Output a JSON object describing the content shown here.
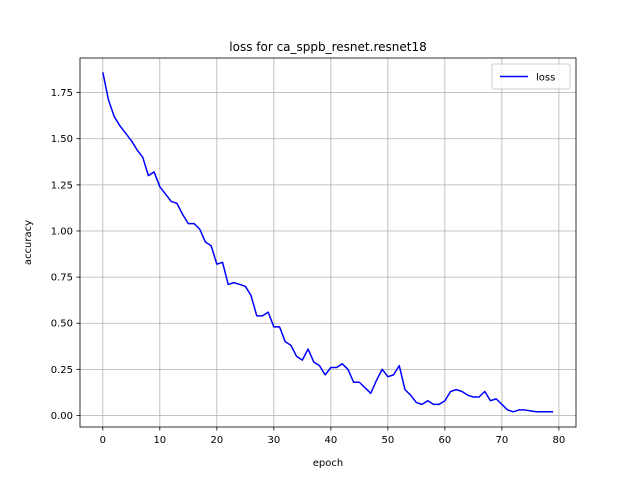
{
  "chart_data": {
    "type": "line",
    "title": "loss for ca_sppb_resnet.resnet18",
    "xlabel": "epoch",
    "ylabel": "accuracy",
    "xlim": [
      -4,
      83
    ],
    "ylim": [
      -0.0625,
      1.9375
    ],
    "xticks": [
      0,
      10,
      20,
      30,
      40,
      50,
      60,
      70,
      80
    ],
    "yticks": [
      0.0,
      0.25,
      0.5,
      0.75,
      1.0,
      1.25,
      1.5,
      1.75
    ],
    "ytick_labels": [
      "0.00",
      "0.25",
      "0.50",
      "0.75",
      "1.00",
      "1.25",
      "1.50",
      "1.75"
    ],
    "grid": true,
    "legend_position": "top-right",
    "series": [
      {
        "name": "loss",
        "color": "#0000ff",
        "x": [
          0,
          1,
          2,
          3,
          4,
          5,
          6,
          7,
          8,
          9,
          10,
          11,
          12,
          13,
          14,
          15,
          16,
          17,
          18,
          19,
          20,
          21,
          22,
          23,
          24,
          25,
          26,
          27,
          28,
          29,
          30,
          31,
          32,
          33,
          34,
          35,
          36,
          37,
          38,
          39,
          40,
          41,
          42,
          43,
          44,
          45,
          46,
          47,
          48,
          49,
          50,
          51,
          52,
          53,
          54,
          55,
          56,
          57,
          58,
          59,
          60,
          61,
          62,
          63,
          64,
          65,
          66,
          67,
          68,
          69,
          70,
          71,
          72,
          73,
          74,
          75,
          76,
          77,
          78,
          79
        ],
        "values": [
          1.86,
          1.71,
          1.62,
          1.57,
          1.53,
          1.49,
          1.44,
          1.4,
          1.3,
          1.32,
          1.24,
          1.2,
          1.16,
          1.15,
          1.09,
          1.04,
          1.04,
          1.01,
          0.94,
          0.92,
          0.82,
          0.83,
          0.71,
          0.72,
          0.71,
          0.7,
          0.65,
          0.54,
          0.54,
          0.56,
          0.48,
          0.48,
          0.4,
          0.38,
          0.32,
          0.3,
          0.36,
          0.29,
          0.27,
          0.22,
          0.26,
          0.26,
          0.28,
          0.25,
          0.18,
          0.18,
          0.15,
          0.12,
          0.19,
          0.25,
          0.21,
          0.22,
          0.27,
          0.14,
          0.11,
          0.07,
          0.06,
          0.08,
          0.06,
          0.06,
          0.08,
          0.13,
          0.14,
          0.13,
          0.11,
          0.1,
          0.1,
          0.13,
          0.08,
          0.09,
          0.06,
          0.03,
          0.02,
          0.03,
          0.03,
          0.025,
          0.02,
          0.02,
          0.02,
          0.02
        ]
      }
    ]
  }
}
